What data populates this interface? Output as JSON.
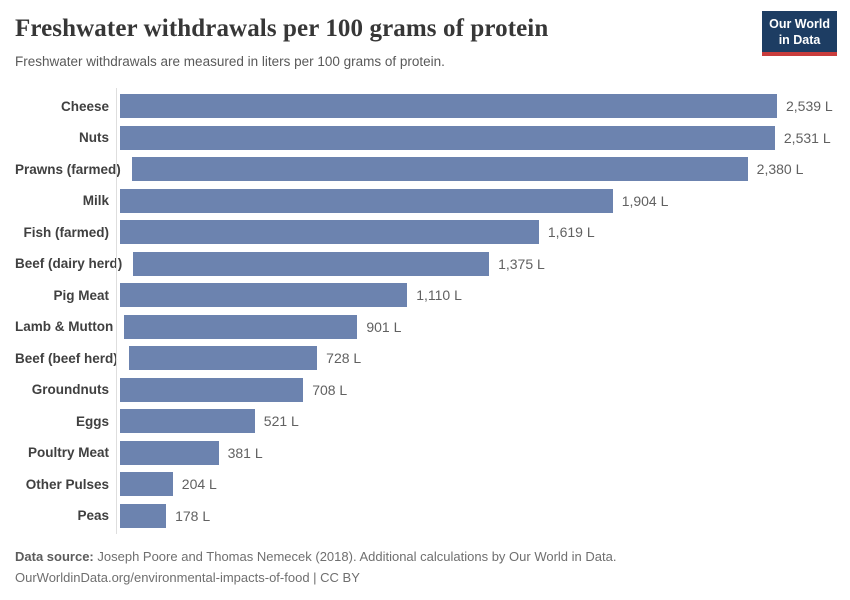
{
  "header": {
    "title": "Freshwater withdrawals per 100 grams of protein",
    "subtitle": "Freshwater withdrawals are measured in liters per 100 grams of protein.",
    "logo": {
      "line1": "Our World",
      "line2": "in Data"
    }
  },
  "chart_data": {
    "type": "bar",
    "orientation": "horizontal",
    "title": "Freshwater withdrawals per 100 grams of protein",
    "subtitle": "Freshwater withdrawals are measured in liters per 100 grams of protein.",
    "unit": "liters per 100 grams of protein",
    "categories": [
      "Cheese",
      "Nuts",
      "Prawns (farmed)",
      "Milk",
      "Fish (farmed)",
      "Beef (dairy herd)",
      "Pig Meat",
      "Lamb & Mutton",
      "Beef (beef herd)",
      "Groundnuts",
      "Eggs",
      "Poultry Meat",
      "Other Pulses",
      "Peas"
    ],
    "values": [
      2539,
      2531,
      2380,
      1904,
      1619,
      1375,
      1110,
      901,
      728,
      708,
      521,
      381,
      204,
      178
    ],
    "value_labels": [
      "2,539 L",
      "2,531 L",
      "2,380 L",
      "1,904 L",
      "1,619 L",
      "1,375 L",
      "1,110 L",
      "901 L",
      "728 L",
      "708 L",
      "521 L",
      "381 L",
      "204 L",
      "178 L"
    ],
    "xlim": [
      0,
      2539
    ],
    "grid": false,
    "legend": false
  },
  "colors": {
    "bar": "#6c83af",
    "axis_line": "#dedede",
    "title_text": "#373737",
    "subtitle_text": "#595959",
    "category_label": "#404040",
    "value_label": "#616161",
    "footer_text": "#6f6f6f",
    "logo_bg": "#1d3d63",
    "logo_accent": "#c93c3c",
    "logo_text": "#ffffff"
  },
  "footer": {
    "source_label": "Data source:",
    "source_text": "Joseph Poore and Thomas Nemecek (2018). Additional calculations by Our World in Data.",
    "url_line": "OurWorldinData.org/environmental-impacts-of-food | CC BY"
  }
}
